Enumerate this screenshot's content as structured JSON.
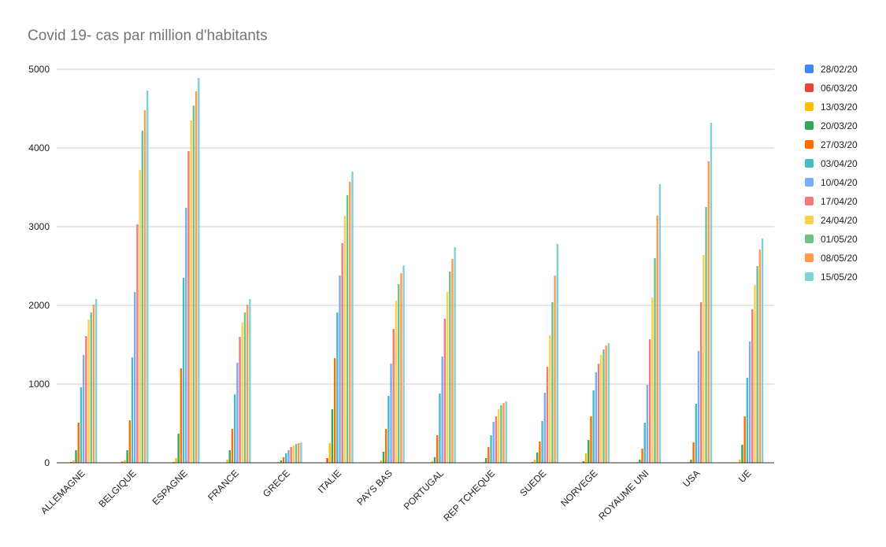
{
  "chart_data": {
    "type": "bar",
    "title": "Covid 19- cas par million d'habitants",
    "xlabel": "",
    "ylabel": "",
    "ylim": [
      0,
      5000
    ],
    "yticks": [
      "0",
      "1000",
      "2000",
      "3000",
      "4000",
      "5000"
    ],
    "grid": true,
    "legend_position": "right",
    "categories": [
      "ALLEMAGNE",
      "BELGIQUE",
      "ESPAGNE",
      "FRANCE",
      "GRECE",
      "ITALIE",
      "PAYS BAS",
      "PORTUGAL",
      "REP TCHEQUE",
      "SUEDE",
      "NORVEGE",
      "ROYAUME UNI",
      "USA",
      "UE"
    ],
    "series": [
      {
        "name": "28/02/20",
        "color": "#4285f4",
        "values": [
          0,
          0,
          0,
          0,
          0,
          0,
          0,
          0,
          0,
          0,
          0,
          0,
          0,
          0
        ]
      },
      {
        "name": "06/03/20",
        "color": "#ea4335",
        "values": [
          10,
          15,
          10,
          5,
          2,
          60,
          5,
          2,
          2,
          10,
          20,
          5,
          5,
          5
        ]
      },
      {
        "name": "13/03/20",
        "color": "#fbbc04",
        "values": [
          30,
          30,
          60,
          40,
          10,
          250,
          30,
          20,
          10,
          40,
          120,
          10,
          10,
          40
        ]
      },
      {
        "name": "20/03/20",
        "color": "#34a853",
        "values": [
          160,
          160,
          370,
          160,
          30,
          680,
          140,
          70,
          60,
          130,
          290,
          40,
          40,
          230
        ]
      },
      {
        "name": "27/03/20",
        "color": "#ff6d01",
        "values": [
          510,
          540,
          1200,
          430,
          70,
          1330,
          430,
          350,
          200,
          270,
          590,
          180,
          260,
          590
        ]
      },
      {
        "name": "03/04/20",
        "color": "#46bdc6",
        "values": [
          960,
          1340,
          2350,
          870,
          120,
          1910,
          850,
          880,
          350,
          530,
          920,
          510,
          750,
          1080
        ]
      },
      {
        "name": "10/04/20",
        "color": "#7baaf7",
        "values": [
          1370,
          2170,
          3240,
          1270,
          160,
          2380,
          1260,
          1350,
          520,
          890,
          1150,
          990,
          1420,
          1540
        ]
      },
      {
        "name": "17/04/20",
        "color": "#f07b72",
        "values": [
          1610,
          3030,
          3960,
          1600,
          200,
          2790,
          1700,
          1830,
          590,
          1220,
          1260,
          1570,
          2040,
          1950
        ]
      },
      {
        "name": "24/04/20",
        "color": "#fcd04f",
        "values": [
          1820,
          3720,
          4350,
          1780,
          220,
          3140,
          2060,
          2170,
          680,
          1620,
          1370,
          2100,
          2640,
          2260
        ]
      },
      {
        "name": "01/05/20",
        "color": "#71c287",
        "values": [
          1910,
          4220,
          4540,
          1910,
          240,
          3400,
          2270,
          2430,
          730,
          2040,
          1440,
          2600,
          3250,
          2500
        ]
      },
      {
        "name": "08/05/20",
        "color": "#ff994d",
        "values": [
          2010,
          4480,
          4720,
          2010,
          250,
          3570,
          2410,
          2590,
          760,
          2380,
          1490,
          3140,
          3830,
          2710
        ]
      },
      {
        "name": "15/05/20",
        "color": "#7ed1d7",
        "values": [
          2080,
          4730,
          4890,
          2080,
          260,
          3700,
          2510,
          2740,
          780,
          2780,
          1520,
          3540,
          4320,
          2850
        ]
      }
    ]
  }
}
